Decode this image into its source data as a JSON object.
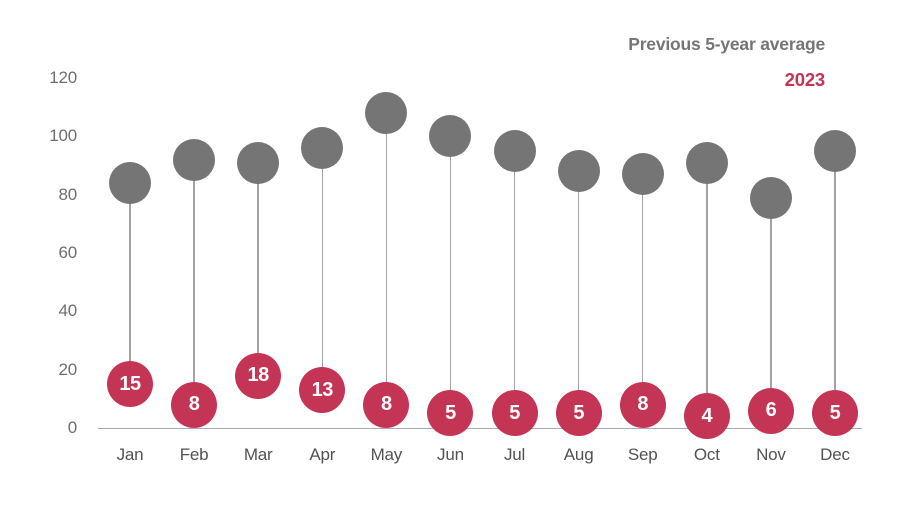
{
  "legend": {
    "series1": "Previous 5-year average",
    "series2": "2023"
  },
  "colors": {
    "average_gray": "#757575",
    "current_red": "#C43455",
    "stem": "#A3A3A3",
    "axis": "#ABABAB",
    "tick_label": "#6E6E6E",
    "month_label": "#525252",
    "value_label_text": "#FFFFFF"
  },
  "chart_data": {
    "type": "scatter",
    "subtype": "lollipop",
    "title": "",
    "xlabel": "",
    "ylabel": "",
    "categories": [
      "Jan",
      "Feb",
      "Mar",
      "Apr",
      "May",
      "Jun",
      "Jul",
      "Aug",
      "Sep",
      "Oct",
      "Nov",
      "Dec"
    ],
    "series": [
      {
        "name": "Previous 5-year average",
        "color": "#757575",
        "values": [
          84,
          92,
          91,
          96,
          108,
          100,
          95,
          88,
          87,
          91,
          79,
          95
        ],
        "data_labels_shown": false
      },
      {
        "name": "2023",
        "color": "#C43455",
        "values": [
          15,
          8,
          18,
          13,
          8,
          5,
          5,
          5,
          8,
          4,
          6,
          5
        ],
        "data_labels_shown": true
      }
    ],
    "yticks": [
      0,
      20,
      40,
      60,
      80,
      100,
      120
    ],
    "ylim": [
      0,
      120
    ],
    "grid": false,
    "legend_position": "top-right"
  }
}
